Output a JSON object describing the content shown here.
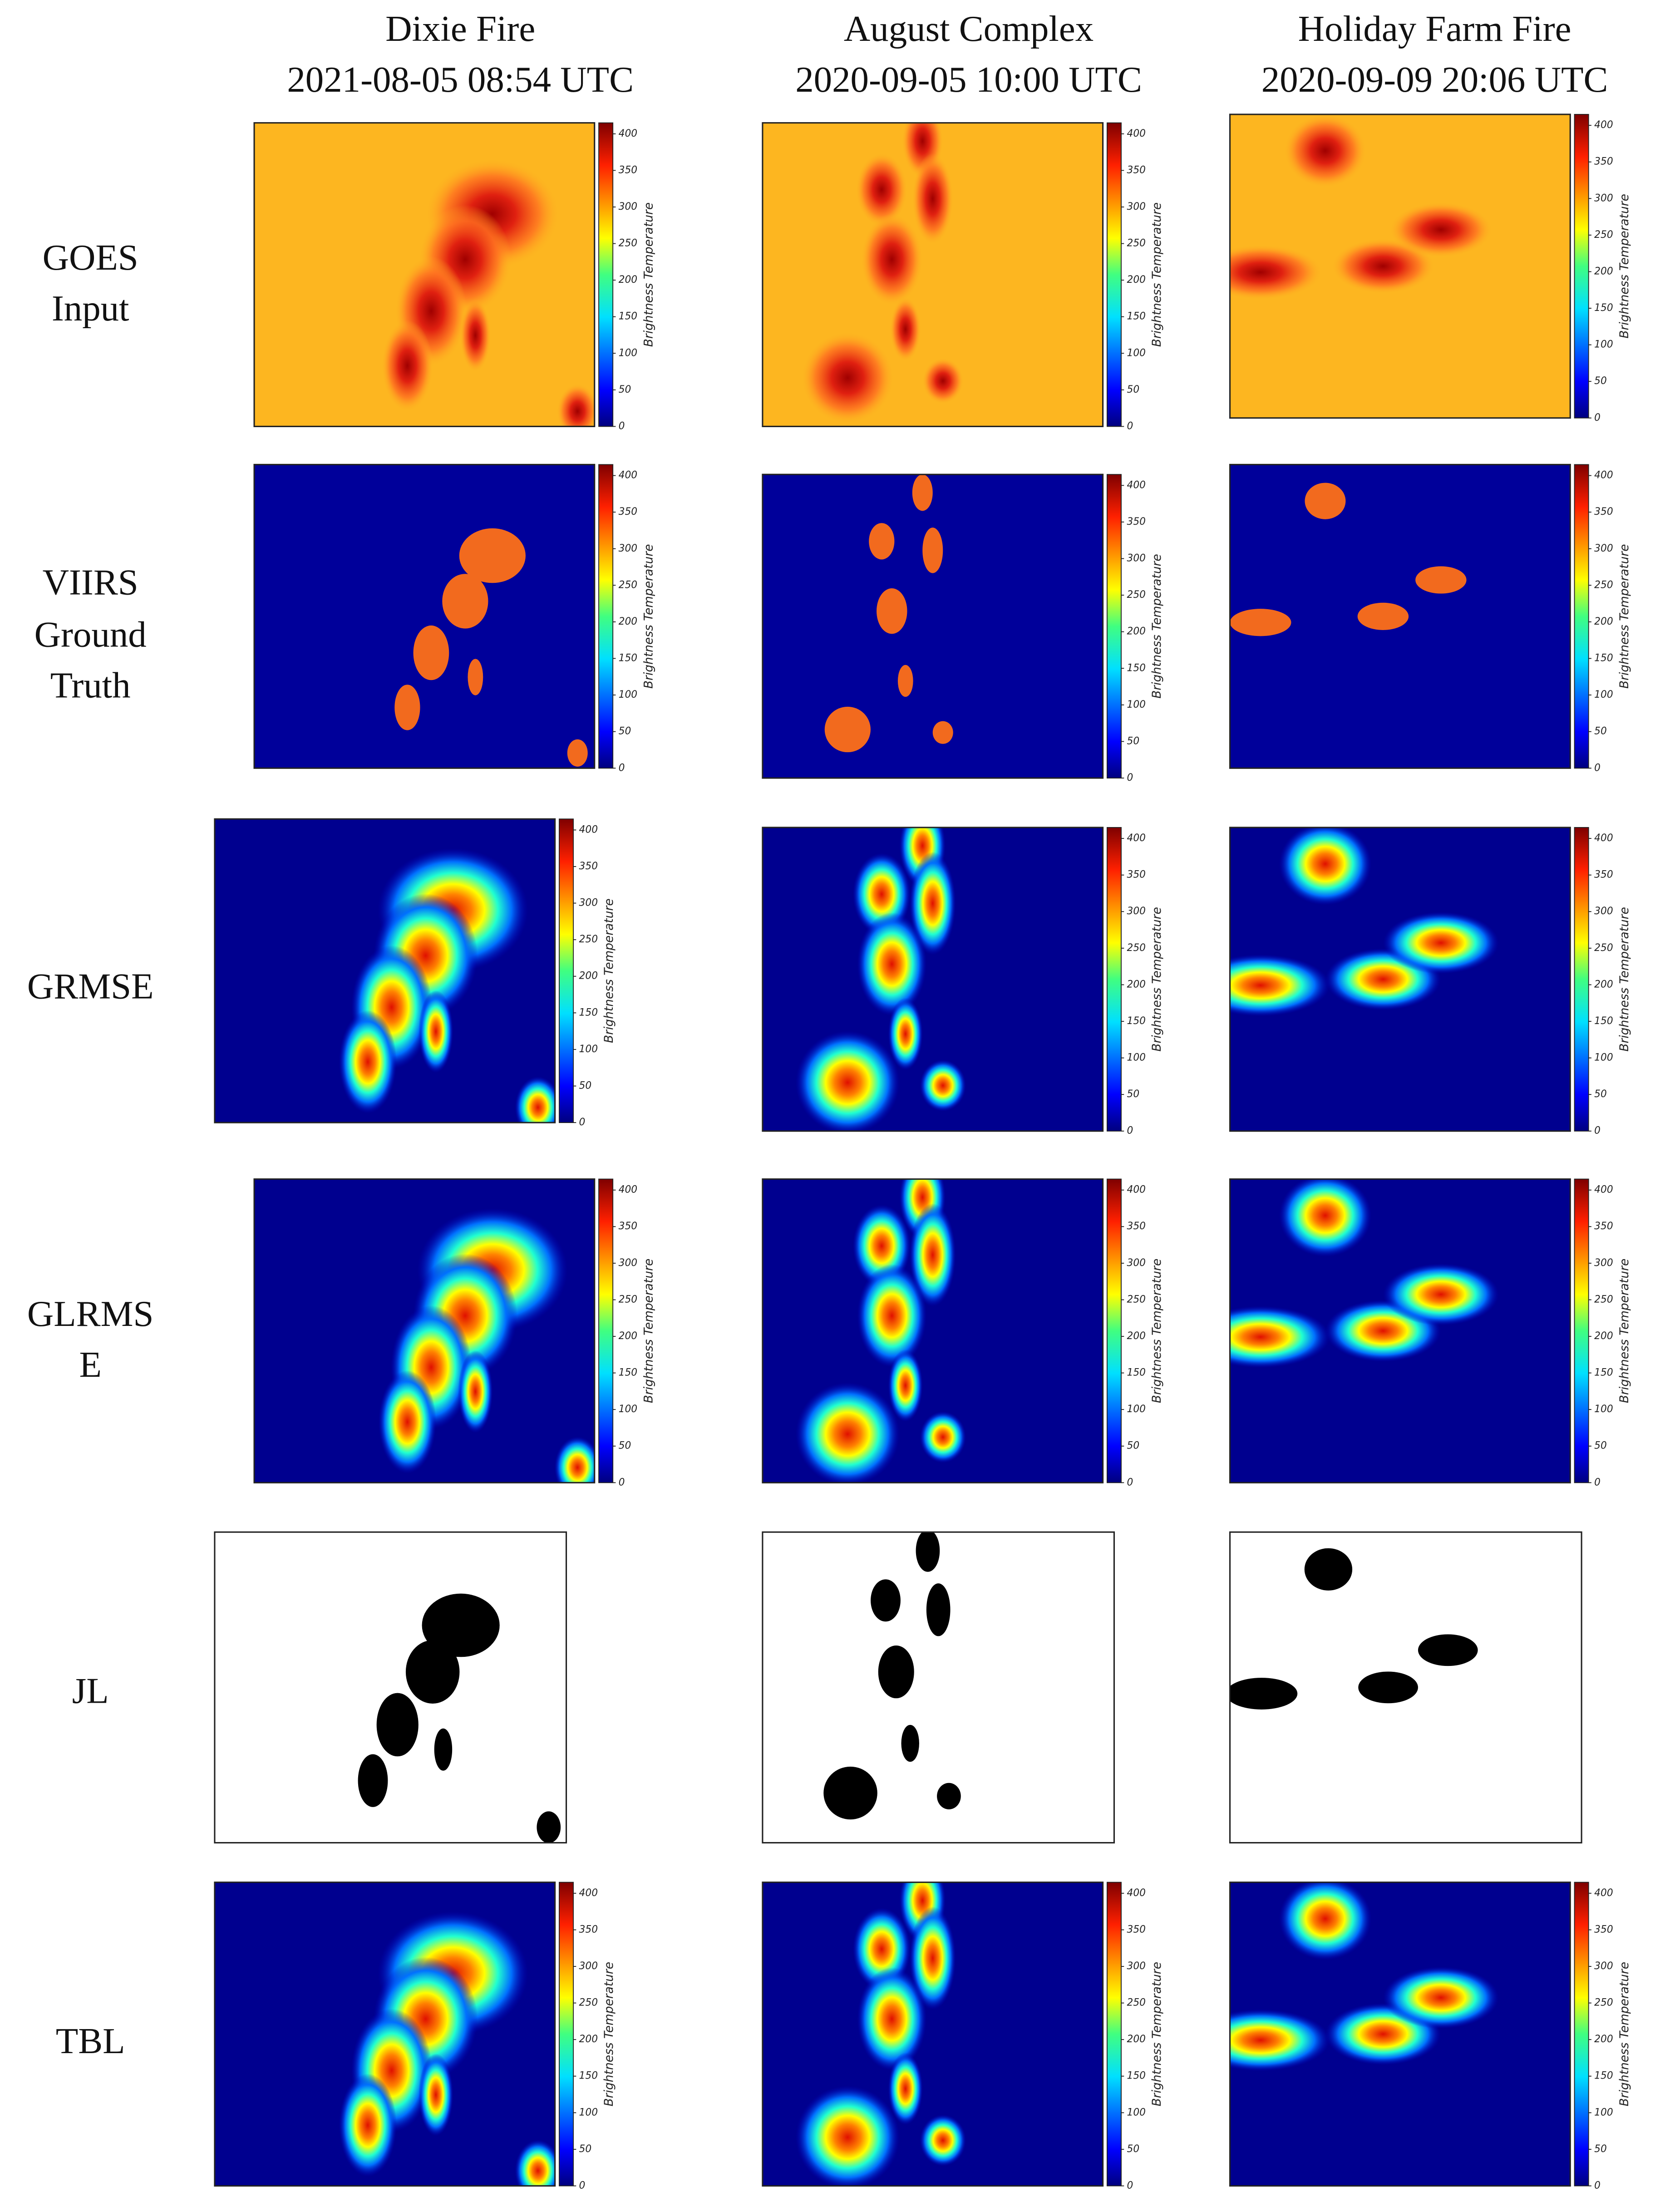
{
  "columns": [
    {
      "title": "Dixie Fire",
      "timestamp": "2021-08-05 08:54 UTC"
    },
    {
      "title": "August Complex",
      "timestamp": "2020-09-05 10:00 UTC"
    },
    {
      "title": "Holiday Farm Fire",
      "timestamp": "2020-09-09 20:06 UTC"
    }
  ],
  "rows": [
    [
      "GOES",
      "Input"
    ],
    [
      "VIIRS",
      "Ground",
      "Truth"
    ],
    [
      "GRMSE"
    ],
    [
      "GLRMS",
      "E"
    ],
    [
      "JL"
    ],
    [
      "TBL"
    ]
  ],
  "colorbar": {
    "label": "Brightness Temperature",
    "ticks": [
      0,
      50,
      100,
      150,
      200,
      250,
      300,
      350,
      400
    ],
    "range": [
      0,
      415
    ]
  }
}
